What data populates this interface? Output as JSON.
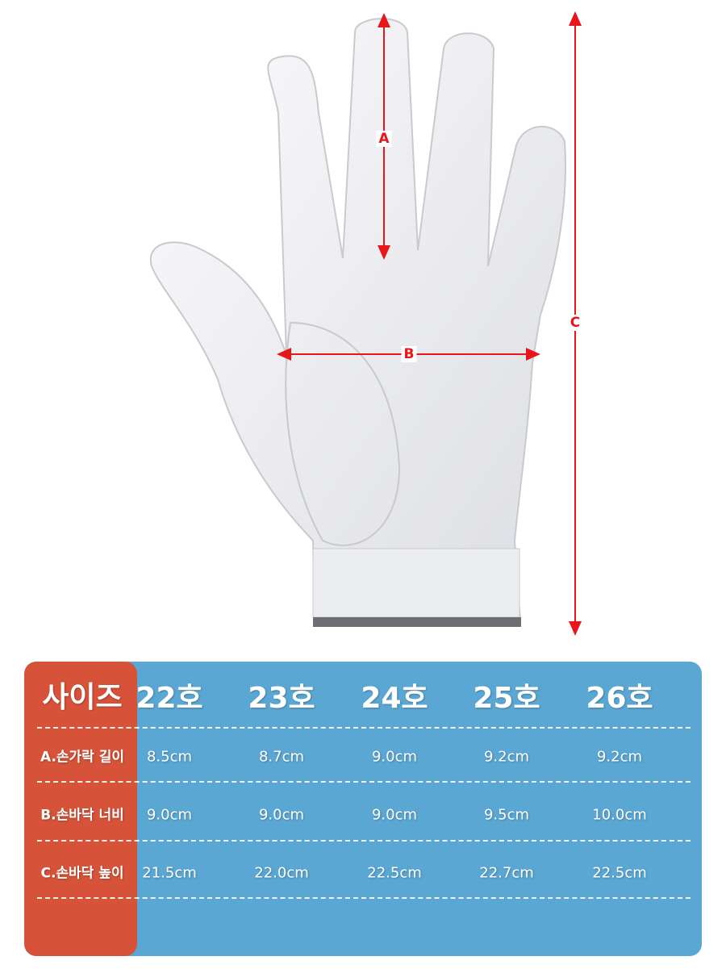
{
  "measurements": {
    "a_label": "A",
    "b_label": "B",
    "c_label": "C"
  },
  "colors": {
    "size_column": "#d6533a",
    "table_bg": "#5ba7d3",
    "arrow": "#e8161b"
  },
  "table": {
    "header": "사이즈",
    "sizes": [
      "22호",
      "23호",
      "24호",
      "25호",
      "26호"
    ],
    "rows": [
      {
        "label": "A.손가락 길이",
        "values": [
          "8.5cm",
          "8.7cm",
          "9.0cm",
          "9.2cm",
          "9.2cm"
        ]
      },
      {
        "label": "B.손바닥 너비",
        "values": [
          "9.0cm",
          "9.0cm",
          "9.0cm",
          "9.5cm",
          "10.0cm"
        ]
      },
      {
        "label": "C.손바닥 높이",
        "values": [
          "21.5cm",
          "22.0cm",
          "22.5cm",
          "22.7cm",
          "22.5cm"
        ]
      }
    ]
  }
}
